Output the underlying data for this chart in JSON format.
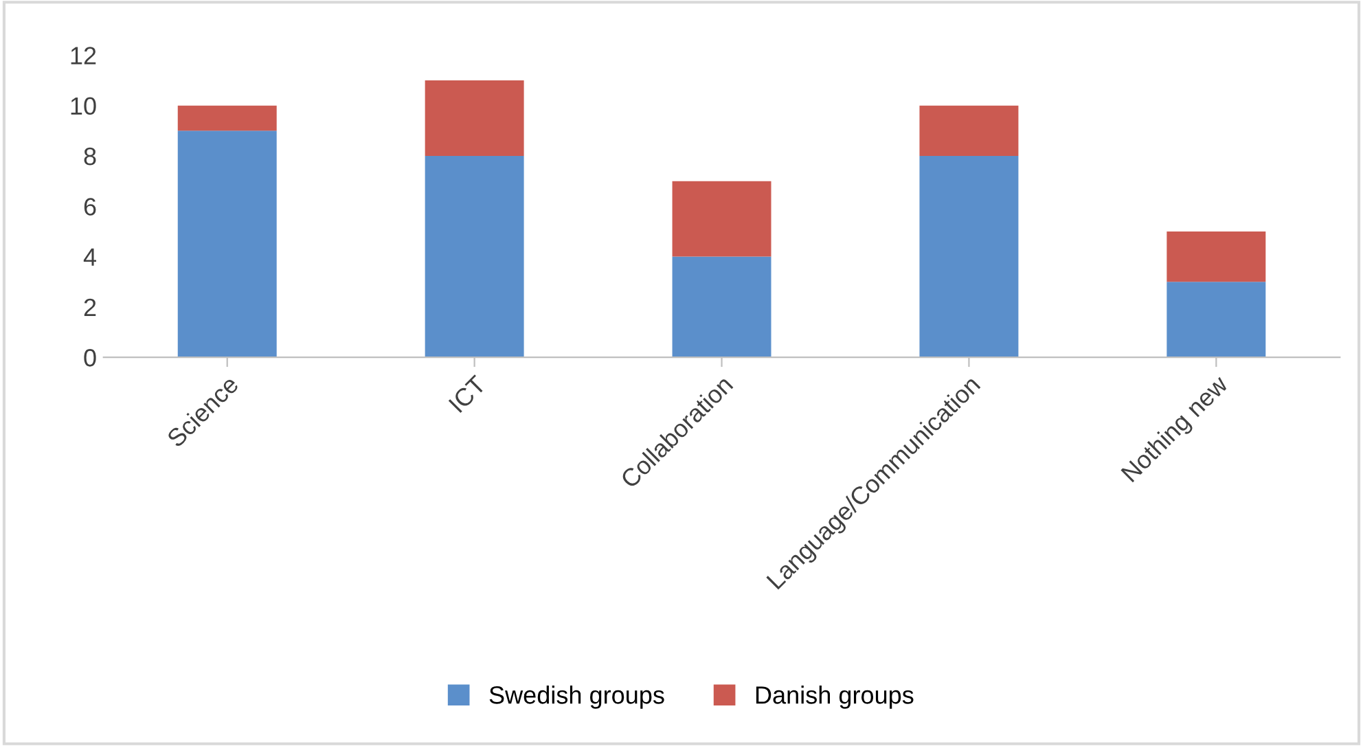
{
  "chart_data": {
    "type": "bar",
    "stacked": true,
    "categories": [
      "Science",
      "ICT",
      "Collaboration",
      "Language/Communication",
      "Nothing new"
    ],
    "series": [
      {
        "name": "Swedish groups",
        "color": "#5b8fcb",
        "values": [
          9,
          8,
          4,
          8,
          3
        ]
      },
      {
        "name": "Danish groups",
        "color": "#cb5a51",
        "values": [
          1,
          3,
          3,
          2,
          2
        ]
      }
    ],
    "ylim": [
      0,
      12
    ],
    "yticks": [
      0,
      2,
      4,
      6,
      8,
      10,
      12
    ],
    "grid": false,
    "legend": "bottom"
  }
}
